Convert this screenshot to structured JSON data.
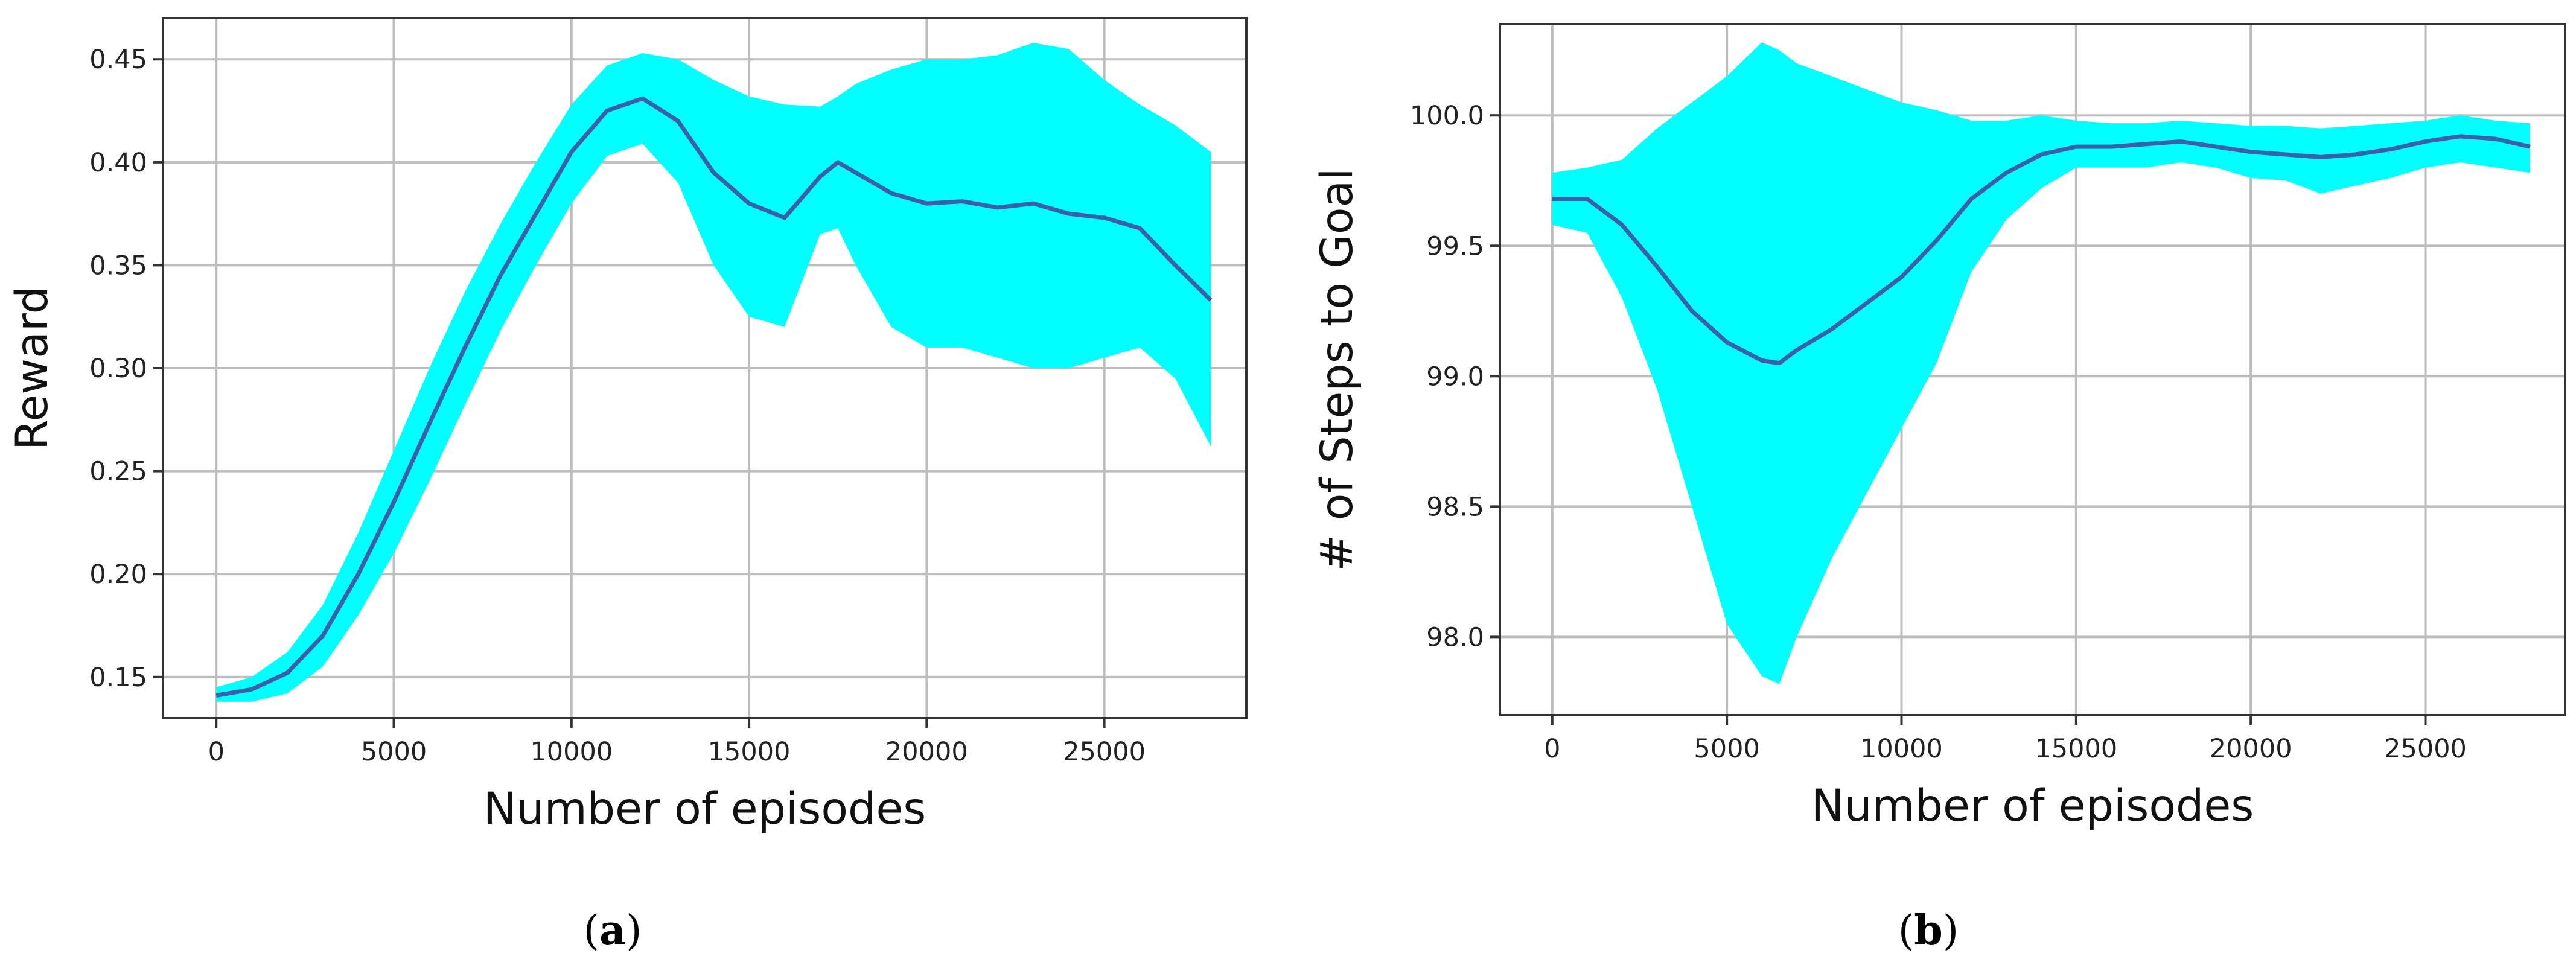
{
  "chart_data": [
    {
      "type": "line",
      "caption_letter": "a",
      "xlabel": "Number of episodes",
      "ylabel": "Reward",
      "xlim": [
        -1500,
        29000
      ],
      "ylim": [
        0.13,
        0.47
      ],
      "xticks": [
        0,
        5000,
        10000,
        15000,
        20000,
        25000
      ],
      "xtick_labels": [
        "0",
        "5000",
        "10000",
        "15000",
        "20000",
        "25000"
      ],
      "yticks": [
        0.15,
        0.2,
        0.25,
        0.3,
        0.35,
        0.4,
        0.45
      ],
      "ytick_labels": [
        "0.15",
        "0.20",
        "0.25",
        "0.30",
        "0.35",
        "0.40",
        "0.45"
      ],
      "grid": true,
      "colors": {
        "mean": "#3b5fa8",
        "band": "#00ffff"
      },
      "series": [
        {
          "x": [
            0,
            1000,
            2000,
            3000,
            4000,
            5000,
            6000,
            7000,
            8000,
            9000,
            10000,
            11000,
            12000,
            13000,
            14000,
            15000,
            16000,
            17000,
            17500,
            18000,
            19000,
            20000,
            21000,
            22000,
            23000,
            24000,
            25000,
            26000,
            27000,
            28000
          ],
          "mean": [
            0.141,
            0.144,
            0.152,
            0.17,
            0.2,
            0.235,
            0.273,
            0.31,
            0.345,
            0.375,
            0.405,
            0.425,
            0.431,
            0.42,
            0.395,
            0.38,
            0.373,
            0.393,
            0.4,
            0.395,
            0.385,
            0.38,
            0.381,
            0.378,
            0.38,
            0.375,
            0.373,
            0.368,
            0.35,
            0.333
          ],
          "upper": [
            0.145,
            0.15,
            0.162,
            0.185,
            0.22,
            0.26,
            0.3,
            0.337,
            0.37,
            0.4,
            0.428,
            0.447,
            0.453,
            0.45,
            0.44,
            0.432,
            0.428,
            0.427,
            0.432,
            0.438,
            0.445,
            0.45,
            0.45,
            0.452,
            0.458,
            0.455,
            0.44,
            0.428,
            0.418,
            0.405
          ],
          "lower": [
            0.138,
            0.138,
            0.142,
            0.155,
            0.18,
            0.21,
            0.245,
            0.282,
            0.318,
            0.35,
            0.38,
            0.403,
            0.409,
            0.39,
            0.35,
            0.325,
            0.32,
            0.365,
            0.368,
            0.35,
            0.32,
            0.31,
            0.31,
            0.305,
            0.3,
            0.3,
            0.305,
            0.31,
            0.295,
            0.262
          ]
        }
      ]
    },
    {
      "type": "line",
      "caption_letter": "b",
      "xlabel": "Number of episodes",
      "ylabel": "# of Steps to Goal",
      "xlim": [
        -1500,
        29000
      ],
      "ylim": [
        97.7,
        100.35
      ],
      "xticks": [
        0,
        5000,
        10000,
        15000,
        20000,
        25000
      ],
      "xtick_labels": [
        "0",
        "5000",
        "10000",
        "15000",
        "20000",
        "25000"
      ],
      "yticks": [
        98.0,
        98.5,
        99.0,
        99.5,
        100.0
      ],
      "ytick_labels": [
        "98.0",
        "98.5",
        "99.0",
        "99.5",
        "100.0"
      ],
      "grid": true,
      "colors": {
        "mean": "#3b5fa8",
        "band": "#00ffff"
      },
      "series": [
        {
          "x": [
            0,
            1000,
            2000,
            3000,
            4000,
            5000,
            6000,
            6500,
            7000,
            8000,
            9000,
            10000,
            11000,
            12000,
            13000,
            14000,
            15000,
            16000,
            17000,
            18000,
            19000,
            20000,
            21000,
            22000,
            23000,
            24000,
            25000,
            26000,
            27000,
            28000
          ],
          "mean": [
            99.68,
            99.68,
            99.58,
            99.42,
            99.25,
            99.13,
            99.06,
            99.05,
            99.1,
            99.18,
            99.28,
            99.38,
            99.52,
            99.68,
            99.78,
            99.85,
            99.88,
            99.88,
            99.89,
            99.9,
            99.88,
            99.86,
            99.85,
            99.84,
            99.85,
            99.87,
            99.9,
            99.92,
            99.91,
            99.88
          ],
          "upper": [
            99.78,
            99.8,
            99.83,
            99.95,
            100.05,
            100.15,
            100.28,
            100.25,
            100.2,
            100.15,
            100.1,
            100.05,
            100.02,
            99.98,
            99.98,
            100.0,
            99.98,
            99.97,
            99.97,
            99.98,
            99.97,
            99.96,
            99.96,
            99.95,
            99.96,
            99.97,
            99.98,
            100.0,
            99.98,
            99.97
          ],
          "lower": [
            99.58,
            99.55,
            99.3,
            98.95,
            98.5,
            98.05,
            97.85,
            97.82,
            98.0,
            98.3,
            98.55,
            98.8,
            99.05,
            99.4,
            99.6,
            99.72,
            99.8,
            99.8,
            99.8,
            99.82,
            99.8,
            99.76,
            99.75,
            99.7,
            99.73,
            99.76,
            99.8,
            99.82,
            99.8,
            99.78
          ]
        }
      ]
    }
  ]
}
